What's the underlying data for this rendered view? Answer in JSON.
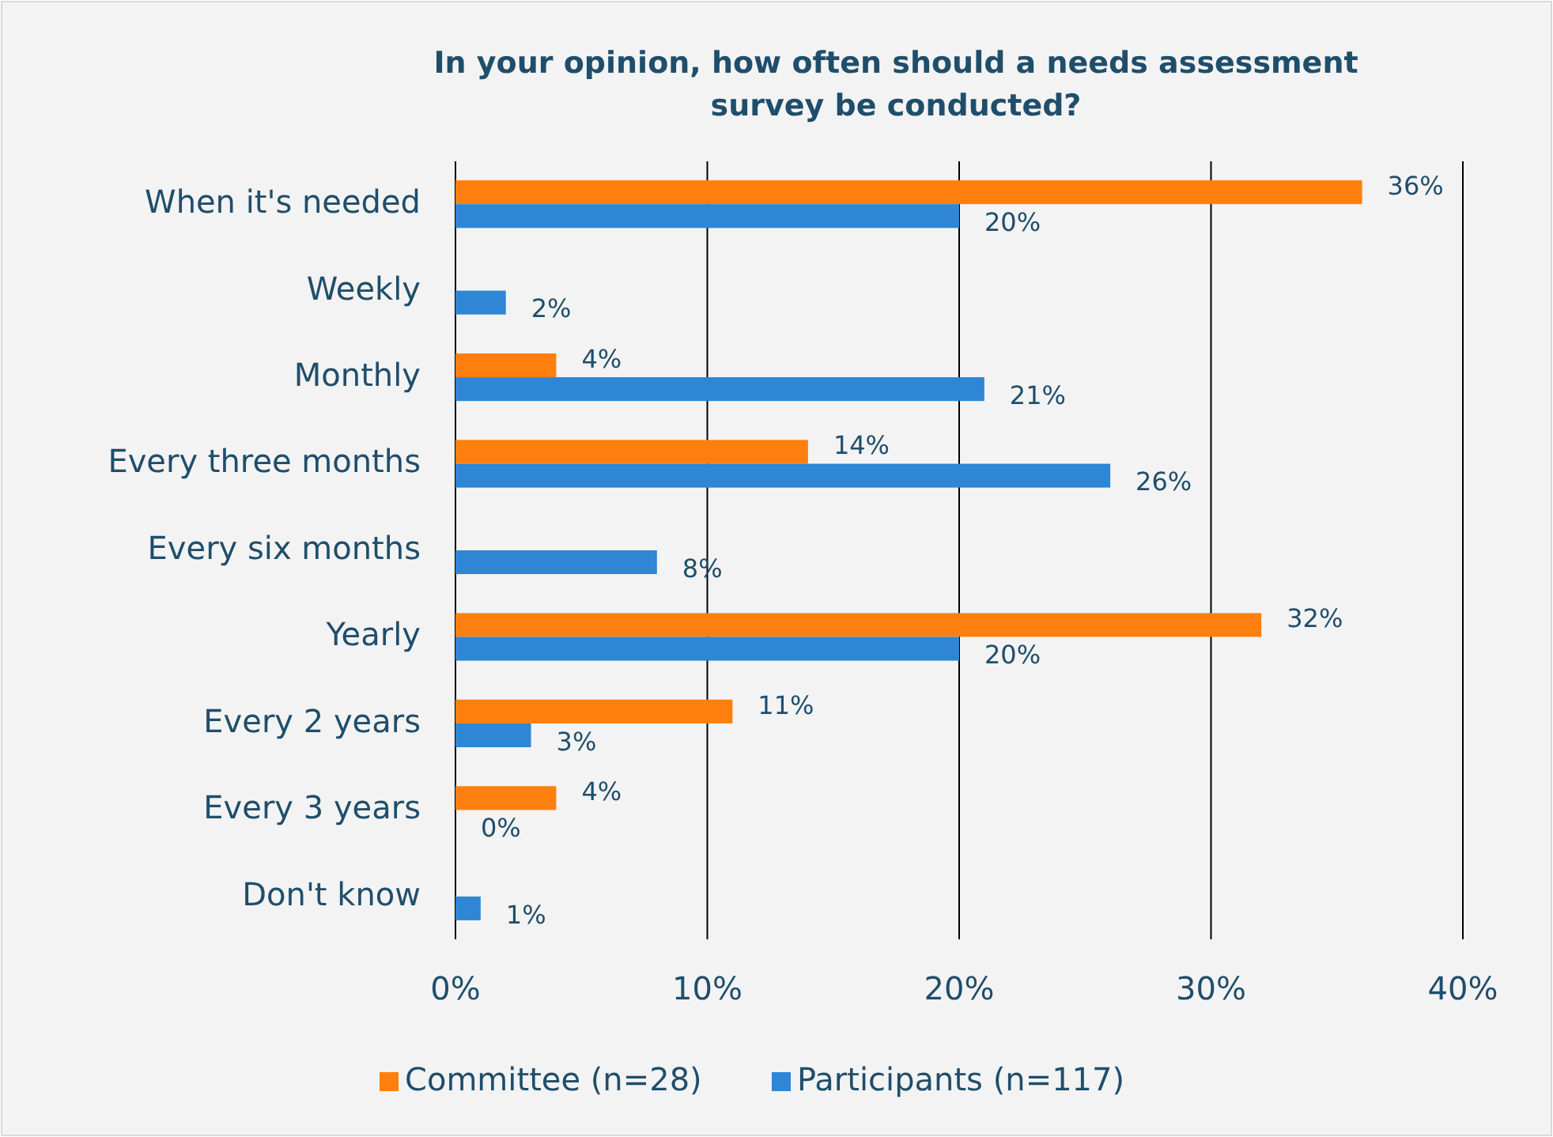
{
  "chart_data": {
    "type": "bar",
    "orientation": "horizontal",
    "title": "In your opinion, how often should a needs assessment survey be conducted?",
    "categories": [
      "When it's needed",
      "Weekly",
      "Monthly",
      "Every three months",
      "Every six months",
      "Yearly",
      "Every 2 years",
      "Every 3 years",
      "Don't know"
    ],
    "series": [
      {
        "name": "Committee (n=28)",
        "color": "#ff7f0e",
        "values": [
          36,
          null,
          4,
          14,
          null,
          32,
          11,
          4,
          null
        ],
        "value_labels": [
          "36%",
          null,
          "4%",
          "14%",
          null,
          "32%",
          "11%",
          "4%",
          null
        ]
      },
      {
        "name": "Participants (n=117)",
        "color": "#2e86d4",
        "values": [
          20,
          2,
          21,
          26,
          8,
          20,
          3,
          0,
          1
        ],
        "value_labels": [
          "20%",
          "2%",
          "21%",
          "26%",
          "8%",
          "20%",
          "3%",
          "0%",
          "1%"
        ]
      }
    ],
    "xlim": [
      0,
      40
    ],
    "xticks": [
      {
        "value": 0,
        "label": "0%"
      },
      {
        "value": 10,
        "label": "10%"
      },
      {
        "value": 20,
        "label": "20%"
      },
      {
        "value": 30,
        "label": "30%"
      },
      {
        "value": 40,
        "label": "40%"
      }
    ],
    "grid": "x",
    "legend": "bottom"
  }
}
